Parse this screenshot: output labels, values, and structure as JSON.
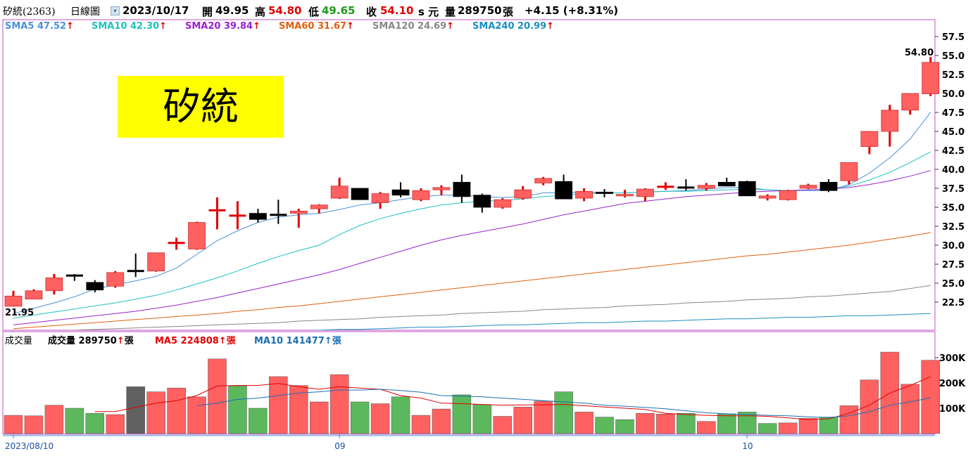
{
  "header": {
    "stock": "矽統(2363)",
    "chart_type": "日線圖",
    "date": "2023/10/17",
    "open_label": "開",
    "open": "49.95",
    "high_label": "高",
    "high": "54.80",
    "low_label": "低",
    "low": "49.65",
    "close_label": "收",
    "close": "54.10",
    "unit": "s 元",
    "volume_label": "量",
    "volume": "289750",
    "volume_unit": "張",
    "change": "+4.15 (+8.31%)"
  },
  "sma_legend": [
    {
      "label": "SMA5",
      "value": "47.52",
      "color": "#4a90d9"
    },
    {
      "label": "SMA10",
      "value": "42.30",
      "color": "#20c0c0"
    },
    {
      "label": "SMA20",
      "value": "39.84",
      "color": "#9a20d0"
    },
    {
      "label": "SMA60",
      "value": "31.67",
      "color": "#e06010"
    },
    {
      "label": "SMA120",
      "value": "24.69",
      "color": "#888888"
    },
    {
      "label": "SMA240",
      "value": "20.99",
      "color": "#1a8fc0"
    }
  ],
  "arrow_glyph": "↑",
  "title_box": {
    "text": "矽統",
    "bg": "#ffff00"
  },
  "price_annotations": {
    "max": "54.80",
    "min": "21.95"
  },
  "volume_legend": {
    "title": "成交量",
    "vol_label": "成交量",
    "vol_value": "289750",
    "vol_unit": "張",
    "ma5_label": "MA5",
    "ma5_value": "224808",
    "ma5_unit": "張",
    "ma10_label": "MA10",
    "ma10_value": "141477",
    "ma10_unit": "張"
  },
  "colors": {
    "up": "#ff6060",
    "up_wick": "#e00000",
    "down": "#000000",
    "vol_up": "#ff6060",
    "vol_down": "#5cb85c",
    "vol_flat": "#606060",
    "frame": "#c050c0"
  },
  "chart_data": {
    "type": "candlestick",
    "price_axis": {
      "ticks": [
        "57.5",
        "55.0",
        "52.5",
        "50.0",
        "47.5",
        "45.0",
        "42.5",
        "40.0",
        "37.5",
        "35.0",
        "32.5",
        "30.0",
        "27.5",
        "25.0",
        "22.5"
      ],
      "min": 20.0,
      "max": 58.5
    },
    "volume_axis": {
      "ticks": [
        "300K",
        "200K",
        "100K"
      ],
      "tick_values": [
        300000,
        200000,
        100000
      ],
      "max": 340000
    },
    "x_labels": [
      {
        "text": "2023/08/10",
        "index": 0
      },
      {
        "text": "09",
        "index": 16
      },
      {
        "text": "10",
        "index": 36
      }
    ],
    "candles": [
      {
        "o": 21.95,
        "h": 24.0,
        "l": 21.9,
        "c": 23.3
      },
      {
        "o": 22.9,
        "h": 24.2,
        "l": 22.9,
        "c": 24.0
      },
      {
        "o": 24.0,
        "h": 26.2,
        "l": 23.5,
        "c": 25.7
      },
      {
        "o": 26.0,
        "h": 26.2,
        "l": 25.3,
        "c": 25.9
      },
      {
        "o": 25.1,
        "h": 25.4,
        "l": 23.8,
        "c": 24.1
      },
      {
        "o": 24.6,
        "h": 26.6,
        "l": 24.4,
        "c": 26.4
      },
      {
        "o": 26.6,
        "h": 28.9,
        "l": 25.8,
        "c": 26.5
      },
      {
        "o": 26.6,
        "h": 29.0,
        "l": 26.5,
        "c": 29.0
      },
      {
        "o": 30.2,
        "h": 31.0,
        "l": 29.4,
        "c": 30.3
      },
      {
        "o": 29.5,
        "h": 33.1,
        "l": 29.4,
        "c": 33.0
      },
      {
        "o": 34.5,
        "h": 36.3,
        "l": 32.1,
        "c": 34.6
      },
      {
        "o": 33.8,
        "h": 35.8,
        "l": 32.1,
        "c": 33.9
      },
      {
        "o": 34.2,
        "h": 34.8,
        "l": 33.0,
        "c": 33.4
      },
      {
        "o": 34.0,
        "h": 36.0,
        "l": 32.8,
        "c": 33.9
      },
      {
        "o": 34.2,
        "h": 34.8,
        "l": 32.3,
        "c": 34.5
      },
      {
        "o": 34.8,
        "h": 35.4,
        "l": 34.2,
        "c": 35.3
      },
      {
        "o": 36.2,
        "h": 38.9,
        "l": 36.1,
        "c": 37.8
      },
      {
        "o": 37.5,
        "h": 37.5,
        "l": 36.0,
        "c": 36.0
      },
      {
        "o": 35.6,
        "h": 37.0,
        "l": 34.8,
        "c": 36.8
      },
      {
        "o": 37.3,
        "h": 38.3,
        "l": 36.3,
        "c": 36.6
      },
      {
        "o": 36.0,
        "h": 37.5,
        "l": 35.8,
        "c": 37.2
      },
      {
        "o": 37.3,
        "h": 37.9,
        "l": 36.6,
        "c": 37.6
      },
      {
        "o": 38.3,
        "h": 39.3,
        "l": 35.6,
        "c": 36.4
      },
      {
        "o": 36.6,
        "h": 36.8,
        "l": 34.3,
        "c": 35.0
      },
      {
        "o": 35.0,
        "h": 36.2,
        "l": 34.8,
        "c": 36.0
      },
      {
        "o": 36.2,
        "h": 37.8,
        "l": 36.0,
        "c": 37.3
      },
      {
        "o": 38.2,
        "h": 39.0,
        "l": 37.9,
        "c": 38.8
      },
      {
        "o": 38.4,
        "h": 39.3,
        "l": 36.1,
        "c": 36.1
      },
      {
        "o": 36.2,
        "h": 37.5,
        "l": 35.8,
        "c": 37.1
      },
      {
        "o": 37.0,
        "h": 37.4,
        "l": 36.3,
        "c": 36.8
      },
      {
        "o": 36.5,
        "h": 37.3,
        "l": 36.3,
        "c": 36.7
      },
      {
        "o": 36.4,
        "h": 37.5,
        "l": 35.8,
        "c": 37.4
      },
      {
        "o": 37.7,
        "h": 38.3,
        "l": 37.3,
        "c": 37.7
      },
      {
        "o": 37.6,
        "h": 38.7,
        "l": 37.2,
        "c": 37.5
      },
      {
        "o": 37.5,
        "h": 38.2,
        "l": 37.2,
        "c": 37.9
      },
      {
        "o": 38.3,
        "h": 38.9,
        "l": 37.8,
        "c": 37.8
      },
      {
        "o": 38.4,
        "h": 38.5,
        "l": 36.5,
        "c": 36.5
      },
      {
        "o": 36.2,
        "h": 36.7,
        "l": 35.9,
        "c": 36.5
      },
      {
        "o": 36.0,
        "h": 37.3,
        "l": 35.9,
        "c": 37.2
      },
      {
        "o": 37.5,
        "h": 38.1,
        "l": 37.4,
        "c": 37.9
      },
      {
        "o": 38.3,
        "h": 38.7,
        "l": 37.0,
        "c": 37.2
      },
      {
        "o": 38.5,
        "h": 40.9,
        "l": 38.0,
        "c": 40.9
      },
      {
        "o": 43.0,
        "h": 45.0,
        "l": 42.0,
        "c": 45.0
      },
      {
        "o": 45.0,
        "h": 48.5,
        "l": 43.0,
        "c": 47.8
      },
      {
        "o": 47.8,
        "h": 50.0,
        "l": 47.2,
        "c": 50.0
      },
      {
        "o": 49.95,
        "h": 54.8,
        "l": 49.65,
        "c": 54.1
      }
    ],
    "volume": [
      {
        "v": 72000,
        "d": "up"
      },
      {
        "v": 70000,
        "d": "up"
      },
      {
        "v": 112000,
        "d": "up"
      },
      {
        "v": 100000,
        "d": "down"
      },
      {
        "v": 80000,
        "d": "down"
      },
      {
        "v": 75000,
        "d": "up"
      },
      {
        "v": 185000,
        "d": "flat"
      },
      {
        "v": 165000,
        "d": "up"
      },
      {
        "v": 180000,
        "d": "up"
      },
      {
        "v": 145000,
        "d": "up"
      },
      {
        "v": 295000,
        "d": "up"
      },
      {
        "v": 188000,
        "d": "down"
      },
      {
        "v": 100000,
        "d": "down"
      },
      {
        "v": 225000,
        "d": "up"
      },
      {
        "v": 190000,
        "d": "up"
      },
      {
        "v": 125000,
        "d": "up"
      },
      {
        "v": 233000,
        "d": "up"
      },
      {
        "v": 125000,
        "d": "down"
      },
      {
        "v": 118000,
        "d": "up"
      },
      {
        "v": 145000,
        "d": "down"
      },
      {
        "v": 72000,
        "d": "up"
      },
      {
        "v": 97000,
        "d": "up"
      },
      {
        "v": 153000,
        "d": "down"
      },
      {
        "v": 115000,
        "d": "down"
      },
      {
        "v": 68000,
        "d": "up"
      },
      {
        "v": 105000,
        "d": "up"
      },
      {
        "v": 128000,
        "d": "up"
      },
      {
        "v": 165000,
        "d": "down"
      },
      {
        "v": 85000,
        "d": "up"
      },
      {
        "v": 65000,
        "d": "down"
      },
      {
        "v": 55000,
        "d": "down"
      },
      {
        "v": 80000,
        "d": "up"
      },
      {
        "v": 77000,
        "d": "up"
      },
      {
        "v": 80000,
        "d": "down"
      },
      {
        "v": 48000,
        "d": "up"
      },
      {
        "v": 78000,
        "d": "down"
      },
      {
        "v": 85000,
        "d": "down"
      },
      {
        "v": 40000,
        "d": "down"
      },
      {
        "v": 42000,
        "d": "up"
      },
      {
        "v": 60000,
        "d": "up"
      },
      {
        "v": 65000,
        "d": "down"
      },
      {
        "v": 110000,
        "d": "up"
      },
      {
        "v": 212000,
        "d": "up"
      },
      {
        "v": 322000,
        "d": "up"
      },
      {
        "v": 195000,
        "d": "up"
      },
      {
        "v": 289750,
        "d": "up"
      }
    ],
    "sma": [
      {
        "name": "SMA5",
        "color": "#4a90d9",
        "values": [
          21.0,
          21.7,
          22.4,
          23.2,
          24.2,
          24.8,
          25.3,
          25.9,
          27.0,
          28.8,
          30.6,
          31.9,
          33.0,
          33.7,
          34.0,
          34.2,
          34.7,
          35.3,
          35.6,
          36.0,
          36.4,
          36.6,
          36.6,
          36.4,
          36.3,
          36.4,
          36.9,
          36.9,
          37.0,
          36.9,
          36.9,
          37.0,
          37.1,
          37.2,
          37.4,
          37.6,
          37.6,
          37.3,
          37.2,
          37.2,
          37.2,
          38.0,
          39.5,
          41.5,
          44.0,
          47.52
        ]
      },
      {
        "name": "SMA10",
        "color": "#20c0c0",
        "values": [
          20.4,
          20.8,
          21.2,
          21.6,
          22.0,
          22.4,
          22.9,
          23.4,
          24.1,
          24.9,
          25.7,
          26.6,
          27.6,
          28.5,
          29.3,
          30.0,
          31.4,
          32.6,
          33.5,
          34.2,
          34.8,
          35.3,
          35.6,
          35.8,
          35.9,
          36.1,
          36.4,
          36.6,
          36.8,
          36.9,
          36.9,
          37.0,
          37.1,
          37.1,
          37.2,
          37.3,
          37.4,
          37.3,
          37.2,
          37.3,
          37.4,
          37.8,
          38.6,
          39.6,
          40.9,
          42.3
        ]
      },
      {
        "name": "SMA20",
        "color": "#9a20d0",
        "values": [
          19.5,
          19.8,
          20.1,
          20.4,
          20.7,
          21.0,
          21.3,
          21.7,
          22.1,
          22.6,
          23.1,
          23.7,
          24.3,
          24.9,
          25.5,
          26.1,
          26.8,
          27.6,
          28.4,
          29.2,
          30.0,
          30.7,
          31.3,
          31.8,
          32.3,
          32.8,
          33.4,
          34.0,
          34.5,
          35.0,
          35.5,
          35.8,
          36.1,
          36.4,
          36.6,
          36.8,
          37.0,
          37.1,
          37.2,
          37.3,
          37.4,
          37.6,
          38.0,
          38.5,
          39.1,
          39.84
        ]
      },
      {
        "name": "SMA60",
        "color": "#e06010",
        "values": [
          19.0,
          19.2,
          19.4,
          19.6,
          19.8,
          20.0,
          20.2,
          20.4,
          20.6,
          20.8,
          21.0,
          21.3,
          21.5,
          21.8,
          22.0,
          22.3,
          22.6,
          22.9,
          23.2,
          23.5,
          23.8,
          24.1,
          24.4,
          24.7,
          25.0,
          25.3,
          25.6,
          25.9,
          26.2,
          26.5,
          26.8,
          27.1,
          27.4,
          27.7,
          28.0,
          28.3,
          28.6,
          28.8,
          29.1,
          29.4,
          29.7,
          30.0,
          30.4,
          30.8,
          31.2,
          31.67
        ]
      },
      {
        "name": "SMA120",
        "color": "#888888",
        "values": [
          18.5,
          18.6,
          18.7,
          18.8,
          18.9,
          19.0,
          19.1,
          19.2,
          19.3,
          19.4,
          19.5,
          19.6,
          19.7,
          19.8,
          20.0,
          20.1,
          20.2,
          20.3,
          20.5,
          20.6,
          20.7,
          20.8,
          21.0,
          21.1,
          21.2,
          21.3,
          21.5,
          21.6,
          21.7,
          21.8,
          22.0,
          22.1,
          22.2,
          22.4,
          22.5,
          22.6,
          22.8,
          22.9,
          23.0,
          23.2,
          23.3,
          23.5,
          23.7,
          23.9,
          24.3,
          24.69
        ]
      },
      {
        "name": "SMA240",
        "color": "#1a8fc0",
        "values": [
          17.5,
          17.6,
          17.7,
          17.8,
          17.9,
          18.0,
          18.0,
          18.1,
          18.2,
          18.3,
          18.4,
          18.5,
          18.5,
          18.6,
          18.7,
          18.8,
          18.9,
          18.9,
          19.0,
          19.1,
          19.2,
          19.2,
          19.3,
          19.4,
          19.5,
          19.5,
          19.6,
          19.7,
          19.8,
          19.8,
          19.9,
          20.0,
          20.0,
          20.1,
          20.2,
          20.3,
          20.3,
          20.4,
          20.5,
          20.5,
          20.6,
          20.7,
          20.7,
          20.8,
          20.9,
          20.99
        ]
      }
    ],
    "vol_ma": [
      {
        "name": "MA5",
        "color": "#e00000",
        "values": [
          null,
          null,
          null,
          null,
          87000,
          87000,
          104000,
          120000,
          130000,
          150000,
          188000,
          190000,
          190000,
          198000,
          185000,
          175000,
          185000,
          180000,
          175000,
          150000,
          140000,
          120000,
          118000,
          115000,
          112000,
          113000,
          113000,
          115000,
          110000,
          105000,
          100000,
          95000,
          80000,
          75000,
          72000,
          70000,
          70000,
          68000,
          62000,
          55000,
          58000,
          80000,
          112000,
          160000,
          190000,
          224808
        ]
      },
      {
        "name": "MA10",
        "color": "#1a6fb0",
        "values": [
          null,
          null,
          null,
          null,
          null,
          null,
          null,
          null,
          null,
          110000,
          120000,
          135000,
          140000,
          150000,
          160000,
          165000,
          172000,
          172000,
          175000,
          170000,
          163000,
          150000,
          148000,
          145000,
          140000,
          135000,
          130000,
          125000,
          120000,
          112000,
          108000,
          103000,
          98000,
          90000,
          82000,
          78000,
          75000,
          72000,
          70000,
          66000,
          63000,
          70000,
          86000,
          112000,
          125000,
          141477
        ]
      }
    ]
  }
}
